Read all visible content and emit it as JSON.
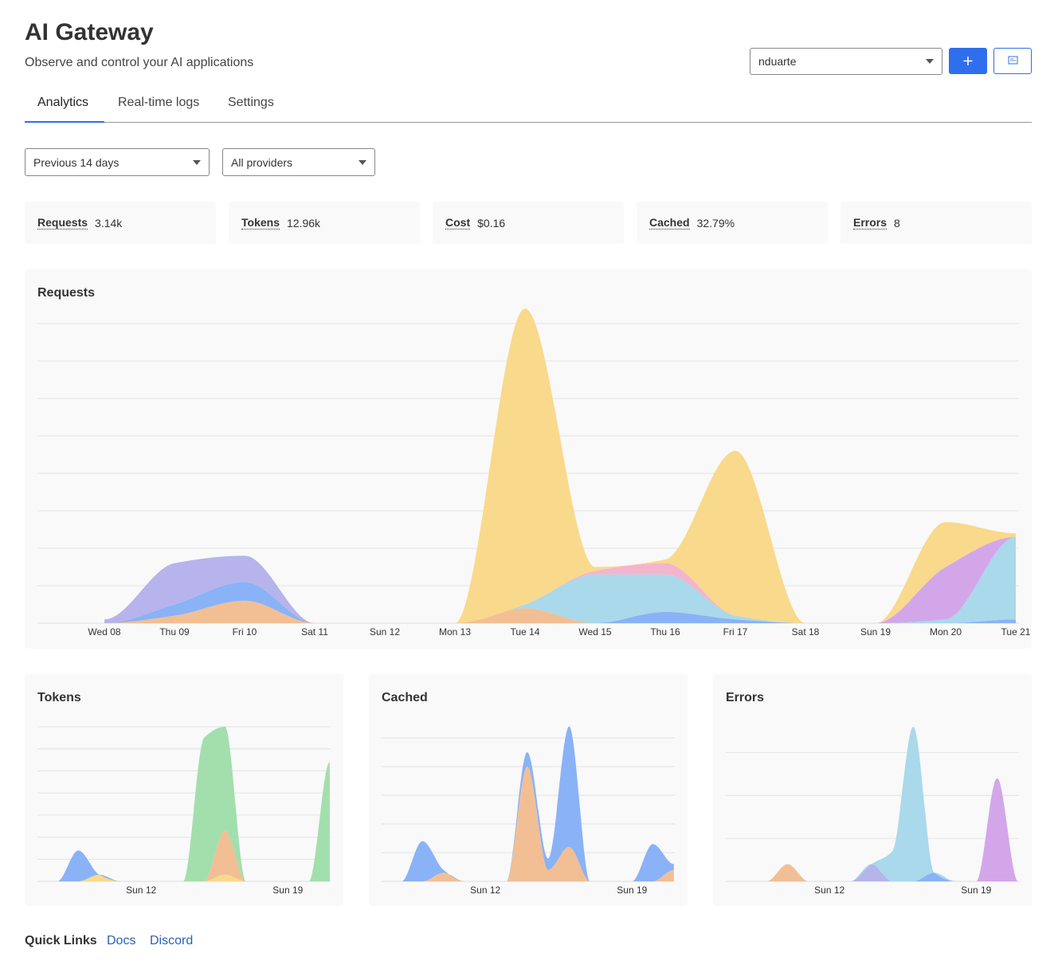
{
  "header": {
    "title": "AI Gateway",
    "subtitle": "Observe and control your AI applications"
  },
  "gateway_select": "nduarte",
  "tabs": [
    "Analytics",
    "Real-time logs",
    "Settings"
  ],
  "filters": [
    "Previous 14 days",
    "All providers"
  ],
  "stats": [
    {
      "label": "Requests",
      "value": "3.14k"
    },
    {
      "label": "Tokens",
      "value": "12.96k"
    },
    {
      "label": "Cost",
      "value": "$0.16"
    },
    {
      "label": "Cached",
      "value": "32.79%"
    },
    {
      "label": "Errors",
      "value": "8"
    }
  ],
  "chart_data": [
    {
      "type": "area",
      "stacked": true,
      "title": "Requests",
      "categories": [
        "Wed 08",
        "Thu 09",
        "Fri 10",
        "Sat 11",
        "Sun 12",
        "Mon 13",
        "Tue 14",
        "Wed 15",
        "Thu 16",
        "Fri 17",
        "Sat 18",
        "Sun 19",
        "Mon 20",
        "Tue 21"
      ],
      "ylim": [
        0,
        8.5
      ],
      "yticks": [
        1,
        2,
        3,
        4,
        5,
        6,
        7,
        8
      ],
      "grid": true,
      "series": [
        {
          "color": "#f2bf94",
          "values": [
            0,
            0.2,
            0.6,
            0,
            0,
            0,
            0.4,
            0,
            0,
            0,
            0,
            0,
            0,
            0
          ]
        },
        {
          "color": "#8ab2f6",
          "values": [
            0,
            0.3,
            0.5,
            0,
            0,
            0,
            0,
            0,
            0.3,
            0.1,
            0,
            0,
            0,
            0.1
          ]
        },
        {
          "color": "#a9d9ea",
          "values": [
            0,
            0,
            0,
            0,
            0,
            0,
            0.1,
            1.3,
            1.0,
            0.1,
            0,
            0,
            0.1,
            2.2
          ]
        },
        {
          "color": "#f3b5cd",
          "values": [
            0,
            0,
            0,
            0,
            0,
            0,
            0,
            0.1,
            0.3,
            0,
            0,
            0,
            0,
            0
          ]
        },
        {
          "color": "#d3a6ea",
          "values": [
            0,
            0,
            0,
            0,
            0,
            0,
            0,
            0,
            0,
            0,
            0,
            0,
            1.4,
            0
          ]
        },
        {
          "color": "#b7b3ec",
          "values": [
            0.1,
            1.1,
            0.7,
            0,
            0,
            0,
            0,
            0,
            0,
            0,
            0,
            0,
            0,
            0
          ]
        },
        {
          "color": "#f9d98b",
          "values": [
            0,
            0,
            0,
            0,
            0,
            0,
            7.9,
            0.1,
            0.1,
            4.4,
            0,
            0,
            1.2,
            0.1
          ]
        }
      ]
    },
    {
      "type": "area",
      "stacked": true,
      "title": "Tokens",
      "categories": [
        null,
        null,
        null,
        null,
        "Sun 12",
        null,
        null,
        null,
        null,
        null,
        null,
        "Sun 19",
        null,
        null
      ],
      "ylim": [
        0,
        7
      ],
      "yticks": [
        1,
        2,
        3,
        4,
        5,
        6,
        7
      ],
      "grid": true,
      "series": [
        {
          "color": "#f9d98b",
          "values": [
            0,
            0,
            0.3,
            0,
            0,
            0,
            0,
            0,
            0.3,
            0,
            0,
            0,
            0,
            0
          ]
        },
        {
          "color": "#f2bf94",
          "values": [
            0,
            0,
            0,
            0,
            0,
            0,
            0,
            0,
            2.0,
            0,
            0,
            0,
            0,
            0
          ]
        },
        {
          "color": "#8ab2f6",
          "values": [
            0,
            1.4,
            0,
            0,
            0,
            0,
            0,
            0,
            0,
            0,
            0,
            0,
            0,
            0
          ]
        },
        {
          "color": "#a2dfad",
          "values": [
            0,
            0,
            0,
            0,
            0,
            0,
            0,
            6.5,
            4.7,
            0,
            0,
            0,
            0,
            5.4
          ]
        }
      ]
    },
    {
      "type": "area",
      "stacked": true,
      "title": "Cached",
      "categories": [
        null,
        null,
        null,
        null,
        "Sun 12",
        null,
        null,
        null,
        null,
        null,
        null,
        "Sun 19",
        null,
        null
      ],
      "ylim": [
        0,
        5.5
      ],
      "yticks": [
        1,
        2,
        3,
        4,
        5
      ],
      "grid": true,
      "series": [
        {
          "color": "#f2bf94",
          "values": [
            0,
            0,
            0.3,
            0,
            0,
            0,
            4.0,
            0.4,
            1.2,
            0,
            0,
            0,
            0,
            0.4
          ]
        },
        {
          "color": "#8ab2f6",
          "values": [
            0,
            1.4,
            0.1,
            0,
            0,
            0,
            0.5,
            0.4,
            4.2,
            0,
            0,
            0,
            1.3,
            0.2
          ]
        }
      ]
    },
    {
      "type": "area",
      "stacked": true,
      "title": "Errors",
      "categories": [
        null,
        null,
        null,
        null,
        "Sun 12",
        null,
        null,
        null,
        null,
        null,
        null,
        "Sun 19",
        null,
        null
      ],
      "ylim": [
        0,
        3.6
      ],
      "yticks": [
        1,
        2,
        3
      ],
      "grid": true,
      "series": [
        {
          "color": "#f2bf94",
          "values": [
            0,
            0,
            0.4,
            0,
            0,
            0,
            0,
            0,
            0,
            0,
            0,
            0,
            0,
            0
          ]
        },
        {
          "color": "#8ab2f6",
          "values": [
            0,
            0,
            0,
            0,
            0,
            0,
            0,
            0,
            0,
            0.2,
            0,
            0,
            0,
            0
          ]
        },
        {
          "color": "#b7b3ec",
          "values": [
            0,
            0,
            0,
            0,
            0,
            0,
            0.4,
            0,
            0,
            0,
            0,
            0,
            0,
            0
          ]
        },
        {
          "color": "#a9d9ea",
          "values": [
            0,
            0,
            0,
            0,
            0,
            0,
            0,
            0.7,
            3.6,
            0,
            0,
            0,
            0,
            0
          ]
        },
        {
          "color": "#d3a6ea",
          "values": [
            0,
            0,
            0,
            0,
            0,
            0,
            0,
            0,
            0,
            0,
            0,
            0,
            2.4,
            0
          ]
        }
      ]
    }
  ],
  "quick_links": {
    "title": "Quick Links",
    "links": [
      "Docs",
      "Discord"
    ]
  }
}
